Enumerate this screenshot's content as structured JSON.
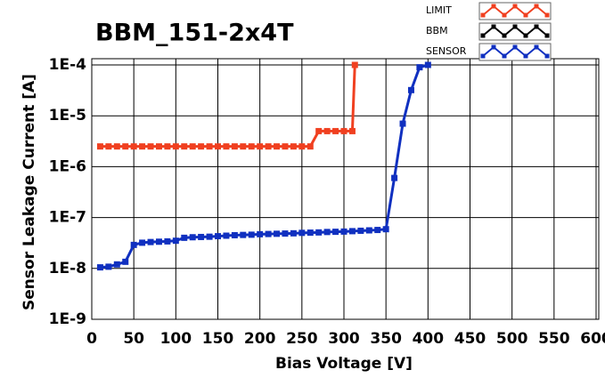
{
  "chart_data": {
    "type": "line",
    "title": "BBM_151-2x4T",
    "x_label": "Bias Voltage [V]",
    "y_label": "Sensor Leakage Current [A]",
    "ylog": true,
    "grid": true,
    "xlim": [
      0,
      600
    ],
    "xticks": [
      0,
      50,
      100,
      150,
      200,
      250,
      300,
      350,
      400,
      450,
      500,
      550,
      600
    ],
    "ylim": [
      1e-09,
      0.0001
    ],
    "yticks": [
      {
        "value": 1e-09,
        "label": "1E-9"
      },
      {
        "value": 1e-08,
        "label": "1E-8"
      },
      {
        "value": 1e-07,
        "label": "1E-7"
      },
      {
        "value": 1e-06,
        "label": "1E-6"
      },
      {
        "value": 1e-05,
        "label": "1E-5"
      },
      {
        "value": 0.0001,
        "label": "1E-4"
      }
    ],
    "series": [
      {
        "name": "LIMIT",
        "color": "#f04020",
        "x": [
          10,
          20,
          30,
          40,
          50,
          60,
          70,
          80,
          90,
          100,
          110,
          120,
          130,
          140,
          150,
          160,
          170,
          180,
          190,
          200,
          210,
          220,
          230,
          240,
          250,
          260,
          270,
          280,
          290,
          300,
          310,
          313
        ],
        "values": [
          2.5e-06,
          2.5e-06,
          2.5e-06,
          2.5e-06,
          2.5e-06,
          2.5e-06,
          2.5e-06,
          2.5e-06,
          2.5e-06,
          2.5e-06,
          2.5e-06,
          2.5e-06,
          2.5e-06,
          2.5e-06,
          2.5e-06,
          2.5e-06,
          2.5e-06,
          2.5e-06,
          2.5e-06,
          2.5e-06,
          2.5e-06,
          2.5e-06,
          2.5e-06,
          2.5e-06,
          2.5e-06,
          2.5e-06,
          5e-06,
          5e-06,
          5e-06,
          5e-06,
          5e-06,
          0.0001
        ]
      },
      {
        "name": "BBM",
        "color": "#000000",
        "x": [],
        "values": []
      },
      {
        "name": "SENSOR",
        "color": "#1030c0",
        "x": [
          10,
          20,
          30,
          40,
          50,
          60,
          70,
          80,
          90,
          100,
          110,
          120,
          130,
          140,
          150,
          160,
          170,
          180,
          190,
          200,
          210,
          220,
          230,
          240,
          250,
          260,
          270,
          280,
          290,
          300,
          310,
          320,
          330,
          340,
          350,
          360,
          370,
          380,
          390,
          400
        ],
        "values": [
          1.05e-08,
          1.08e-08,
          1.2e-08,
          1.35e-08,
          2.9e-08,
          3.2e-08,
          3.3e-08,
          3.35e-08,
          3.4e-08,
          3.5e-08,
          4e-08,
          4.1e-08,
          4.15e-08,
          4.2e-08,
          4.3e-08,
          4.4e-08,
          4.5e-08,
          4.55e-08,
          4.6e-08,
          4.7e-08,
          4.75e-08,
          4.8e-08,
          4.85e-08,
          4.9e-08,
          5e-08,
          5.05e-08,
          5.1e-08,
          5.2e-08,
          5.25e-08,
          5.3e-08,
          5.4e-08,
          5.5e-08,
          5.6e-08,
          5.7e-08,
          5.9e-08,
          6e-07,
          7e-06,
          3.2e-05,
          9e-05,
          0.0001
        ]
      }
    ]
  }
}
